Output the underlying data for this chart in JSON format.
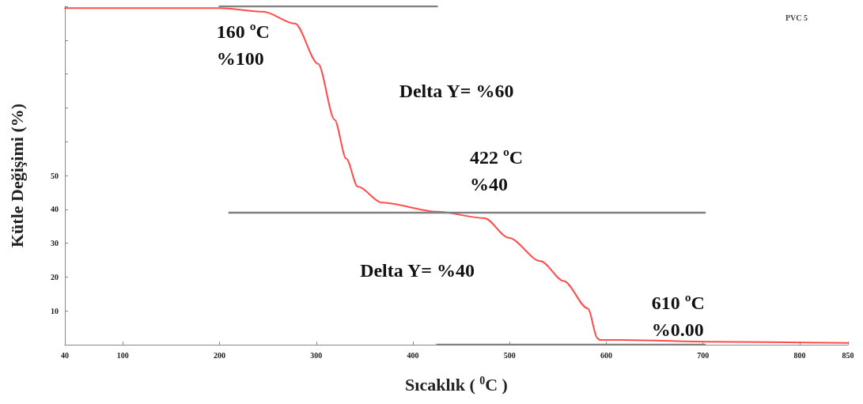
{
  "chart_data": {
    "type": "line",
    "title": "PVC 5",
    "xlabel": "Sıcaklık ( $^{0}$C )",
    "ylabel": "Kütle Değişimi (%)",
    "xlim": [
      40,
      850
    ],
    "xticks": [
      40,
      100,
      200,
      300,
      400,
      500,
      600,
      700,
      800,
      850
    ],
    "ylim": [
      0,
      100
    ],
    "yticks": [
      {
        "value": 0,
        "label": null
      },
      10,
      20,
      30,
      40,
      50,
      {
        "value": 60,
        "label": null
      },
      {
        "value": 70,
        "label": null
      },
      {
        "value": 80,
        "label": null
      },
      {
        "value": 90,
        "label": null
      },
      {
        "value": 100,
        "label": null
      }
    ],
    "grid": false,
    "marker": "none",
    "line_style": "solid",
    "series": [
      {
        "color": "#ff4d4d",
        "x": [
          40,
          200,
          245,
          278,
          302,
          319,
          331,
          343,
          368,
          425,
          474,
          499,
          532,
          556,
          581,
          591,
          593,
          614,
          704,
          850
        ],
        "values": [
          99.5,
          99.5,
          98.4,
          94.9,
          83,
          66.5,
          55,
          46.7,
          42,
          39.3,
          37.4,
          31.6,
          24.7,
          18.8,
          10.7,
          1.9,
          1.4,
          1.4,
          0.9,
          0.5
        ]
      },
      {
        "color": "#808080",
        "x": [
          200,
          425
        ],
        "values": [
          100,
          100
        ]
      },
      {
        "color": "#808080",
        "x": [
          210,
          702
        ],
        "values": [
          39,
          39
        ]
      },
      {
        "color": "#808080",
        "x": [
          425,
          702
        ],
        "values": [
          0,
          0
        ]
      }
    ],
    "annotations": [
      {
        "text": "160 ºC\n%100",
        "x": 160,
        "y": 100
      },
      {
        "text": "422 ºC\n%40",
        "x": 422,
        "y": 40
      },
      {
        "text": "610 ºC\n%0.00",
        "x": 610,
        "y": 0
      },
      "Delta Y= %60",
      "Delta Y= %40"
    ]
  }
}
